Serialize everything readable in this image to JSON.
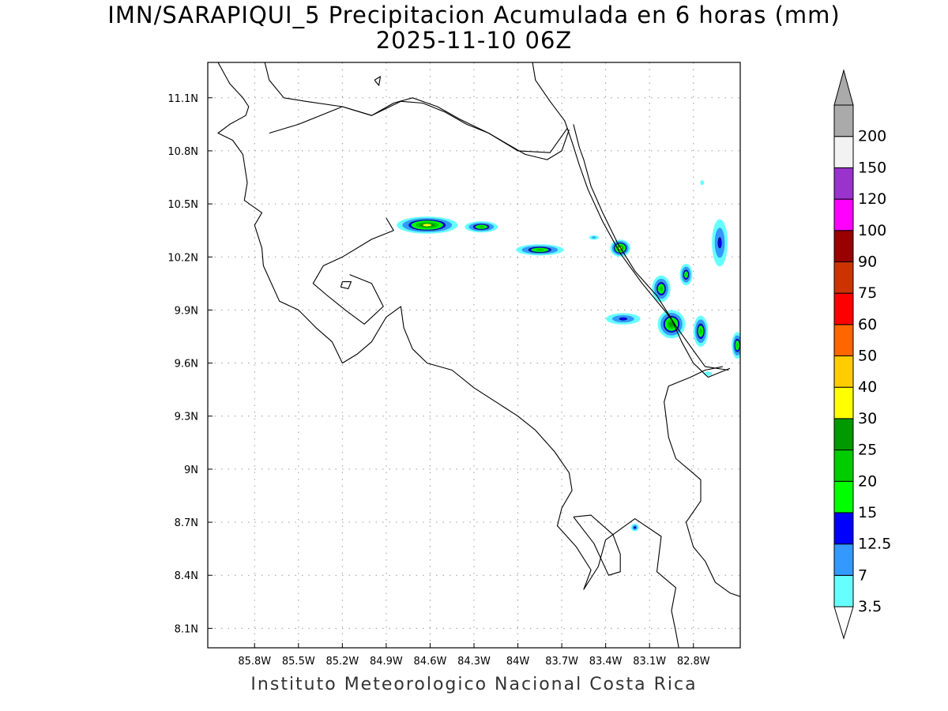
{
  "title": "IMN/SARAPIQUI_5 Precipitacion Acumulada en 6 horas (mm)",
  "subtitle": "2025-11-10 06Z",
  "credit": "Instituto Meteorologico Nacional Costa Rica",
  "map": {
    "lon_range": [
      -86.12,
      -82.48
    ],
    "lat_range": [
      7.99,
      11.3
    ],
    "lon_ticks": [
      {
        "value": -85.8,
        "label": "85.8W"
      },
      {
        "value": -85.5,
        "label": "85.5W"
      },
      {
        "value": -85.2,
        "label": "85.2W"
      },
      {
        "value": -84.9,
        "label": "84.9W"
      },
      {
        "value": -84.6,
        "label": "84.6W"
      },
      {
        "value": -84.3,
        "label": "84.3W"
      },
      {
        "value": -84.0,
        "label": "84W"
      },
      {
        "value": -83.7,
        "label": "83.7W"
      },
      {
        "value": -83.4,
        "label": "83.4W"
      },
      {
        "value": -83.1,
        "label": "83.1W"
      },
      {
        "value": -82.8,
        "label": "82.8W"
      }
    ],
    "lat_ticks": [
      {
        "value": 11.1,
        "label": "11.1N"
      },
      {
        "value": 10.8,
        "label": "10.8N"
      },
      {
        "value": 10.5,
        "label": "10.5N"
      },
      {
        "value": 10.2,
        "label": "10.2N"
      },
      {
        "value": 9.9,
        "label": "9.9N"
      },
      {
        "value": 9.6,
        "label": "9.6N"
      },
      {
        "value": 9.3,
        "label": "9.3N"
      },
      {
        "value": 9.0,
        "label": "9N"
      },
      {
        "value": 8.7,
        "label": "8.7N"
      },
      {
        "value": 8.4,
        "label": "8.4N"
      },
      {
        "value": 8.1,
        "label": "8.1N"
      }
    ],
    "grid": true,
    "coastlines": [
      [
        [
          -86.05,
          11.3
        ],
        [
          -85.97,
          11.18
        ],
        [
          -85.88,
          11.1
        ],
        [
          -85.84,
          11.05
        ],
        [
          -85.86,
          11.0
        ],
        [
          -85.97,
          10.95
        ],
        [
          -86.05,
          10.9
        ],
        [
          -85.95,
          10.86
        ],
        [
          -85.88,
          10.78
        ],
        [
          -85.85,
          10.62
        ],
        [
          -85.87,
          10.52
        ],
        [
          -85.75,
          10.45
        ],
        [
          -85.8,
          10.38
        ],
        [
          -85.75,
          10.25
        ],
        [
          -85.74,
          10.15
        ],
        [
          -85.63,
          9.95
        ],
        [
          -85.5,
          9.9
        ],
        [
          -85.38,
          9.8
        ],
        [
          -85.27,
          9.72
        ],
        [
          -85.2,
          9.6
        ],
        [
          -85.1,
          9.65
        ],
        [
          -85.0,
          9.72
        ],
        [
          -84.9,
          9.86
        ],
        [
          -84.8,
          9.92
        ],
        [
          -84.78,
          9.8
        ],
        [
          -84.72,
          9.68
        ],
        [
          -84.62,
          9.6
        ],
        [
          -84.45,
          9.56
        ],
        [
          -84.3,
          9.46
        ],
        [
          -84.15,
          9.38
        ],
        [
          -84.0,
          9.3
        ],
        [
          -83.88,
          9.22
        ],
        [
          -83.75,
          9.1
        ],
        [
          -83.65,
          8.98
        ],
        [
          -83.63,
          8.88
        ],
        [
          -83.7,
          8.78
        ],
        [
          -83.73,
          8.68
        ],
        [
          -83.6,
          8.56
        ],
        [
          -83.5,
          8.43
        ],
        [
          -83.55,
          8.32
        ],
        [
          -83.45,
          8.45
        ],
        [
          -83.4,
          8.6
        ],
        [
          -83.2,
          8.72
        ],
        [
          -83.02,
          8.62
        ],
        [
          -83.05,
          8.42
        ],
        [
          -82.92,
          8.33
        ],
        [
          -82.95,
          8.2
        ],
        [
          -82.92,
          8.08
        ],
        [
          -82.9,
          7.99
        ]
      ],
      [
        [
          -83.62,
          8.73
        ],
        [
          -83.5,
          8.74
        ],
        [
          -83.35,
          8.63
        ],
        [
          -83.3,
          8.52
        ],
        [
          -83.3,
          8.42
        ],
        [
          -83.38,
          8.4
        ],
        [
          -83.48,
          8.58
        ],
        [
          -83.62,
          8.73
        ]
      ],
      [
        [
          -82.48,
          8.28
        ],
        [
          -82.55,
          8.3
        ],
        [
          -82.65,
          8.36
        ],
        [
          -82.72,
          8.48
        ],
        [
          -82.8,
          8.56
        ],
        [
          -82.85,
          8.7
        ],
        [
          -82.75,
          8.82
        ],
        [
          -82.75,
          8.94
        ],
        [
          -82.82,
          8.99
        ],
        [
          -82.92,
          9.06
        ],
        [
          -82.97,
          9.18
        ],
        [
          -83.0,
          9.38
        ],
        [
          -82.97,
          9.47
        ],
        [
          -82.82,
          9.52
        ],
        [
          -82.72,
          9.56
        ],
        [
          -82.6,
          9.58
        ]
      ],
      [
        [
          -84.9,
          10.42
        ],
        [
          -84.85,
          10.35
        ],
        [
          -85.0,
          10.3
        ],
        [
          -85.2,
          10.2
        ],
        [
          -85.33,
          10.15
        ],
        [
          -85.4,
          10.05
        ],
        [
          -85.3,
          9.98
        ],
        [
          -85.18,
          9.9
        ],
        [
          -85.05,
          9.82
        ],
        [
          -84.92,
          9.92
        ],
        [
          -85.0,
          10.05
        ],
        [
          -85.15,
          10.1
        ]
      ],
      [
        [
          -85.2,
          10.06
        ],
        [
          -85.14,
          10.06
        ],
        [
          -85.16,
          10.02
        ],
        [
          -85.21,
          10.03
        ],
        [
          -85.2,
          10.06
        ]
      ],
      [
        [
          -85.73,
          11.3
        ],
        [
          -85.7,
          11.2
        ],
        [
          -85.6,
          11.1
        ],
        [
          -85.45,
          11.08
        ],
        [
          -85.2,
          11.05
        ],
        [
          -85.0,
          11.0
        ],
        [
          -84.85,
          11.07
        ],
        [
          -84.72,
          11.1
        ],
        [
          -84.55,
          11.05
        ],
        [
          -84.4,
          10.98
        ],
        [
          -84.2,
          10.9
        ],
        [
          -83.95,
          10.78
        ],
        [
          -83.8,
          10.75
        ],
        [
          -83.7,
          10.8
        ],
        [
          -83.65,
          10.92
        ]
      ],
      [
        [
          -83.9,
          11.3
        ],
        [
          -83.88,
          11.2
        ],
        [
          -83.78,
          11.08
        ],
        [
          -83.68,
          10.97
        ],
        [
          -83.63,
          10.85
        ],
        [
          -83.58,
          10.72
        ],
        [
          -83.52,
          10.58
        ],
        [
          -83.42,
          10.4
        ],
        [
          -83.3,
          10.22
        ],
        [
          -83.15,
          10.05
        ],
        [
          -82.98,
          9.88
        ],
        [
          -82.86,
          9.74
        ],
        [
          -82.72,
          9.58
        ],
        [
          -82.56,
          9.56
        ]
      ],
      [
        [
          -84.98,
          11.2
        ],
        [
          -84.95,
          11.17
        ],
        [
          -84.94,
          11.22
        ],
        [
          -84.98,
          11.2
        ]
      ]
    ],
    "borders": [
      [
        [
          -85.7,
          10.9
        ],
        [
          -85.5,
          10.95
        ],
        [
          -85.2,
          11.05
        ],
        [
          -85.0,
          11.0
        ],
        [
          -84.8,
          11.08
        ],
        [
          -84.65,
          11.07
        ],
        [
          -84.5,
          11.02
        ],
        [
          -84.35,
          10.95
        ],
        [
          -84.2,
          10.9
        ],
        [
          -84.0,
          10.8
        ],
        [
          -83.78,
          10.79
        ],
        [
          -83.66,
          10.93
        ]
      ],
      [
        [
          -83.62,
          10.95
        ],
        [
          -83.58,
          10.82
        ],
        [
          -83.55,
          10.75
        ],
        [
          -83.5,
          10.6
        ],
        [
          -83.42,
          10.45
        ],
        [
          -83.32,
          10.28
        ],
        [
          -83.2,
          10.12
        ],
        [
          -83.05,
          9.98
        ],
        [
          -82.95,
          9.85
        ],
        [
          -82.88,
          9.72
        ],
        [
          -82.8,
          9.6
        ],
        [
          -82.7,
          9.52
        ],
        [
          -82.55,
          9.57
        ]
      ]
    ]
  },
  "legend": {
    "levels": [
      "3.5",
      "7",
      "12.5",
      "15",
      "20",
      "25",
      "30",
      "40",
      "50",
      "60",
      "75",
      "90",
      "100",
      "120",
      "150",
      "200"
    ],
    "colors": [
      "#66FFFF",
      "#3399FF",
      "#0000FF",
      "#00FF00",
      "#00CC00",
      "#009900",
      "#FFFF00",
      "#FFCC00",
      "#FF6600",
      "#FF0000",
      "#CC3300",
      "#990000",
      "#FF00FF",
      "#9933CC",
      "#F2F2F2",
      "#AAAAAA"
    ]
  },
  "precip_cells": [
    {
      "lon": -84.62,
      "lat": 10.38,
      "rlon": 0.3,
      "rlat": 0.07,
      "max_mm": 32
    },
    {
      "lon": -84.25,
      "lat": 10.37,
      "rlon": 0.18,
      "rlat": 0.05,
      "max_mm": 22
    },
    {
      "lon": -83.85,
      "lat": 10.24,
      "rlon": 0.26,
      "rlat": 0.05,
      "max_mm": 22
    },
    {
      "lon": -83.3,
      "lat": 10.25,
      "rlon": 0.1,
      "rlat": 0.07,
      "max_mm": 32
    },
    {
      "lon": -83.02,
      "lat": 10.02,
      "rlon": 0.1,
      "rlat": 0.12,
      "max_mm": 22
    },
    {
      "lon": -82.95,
      "lat": 9.82,
      "rlon": 0.14,
      "rlat": 0.12,
      "max_mm": 28
    },
    {
      "lon": -82.75,
      "lat": 9.78,
      "rlon": 0.08,
      "rlat": 0.14,
      "max_mm": 22
    },
    {
      "lon": -82.5,
      "lat": 9.7,
      "rlon": 0.06,
      "rlat": 0.12,
      "max_mm": 22
    },
    {
      "lon": -83.28,
      "lat": 9.85,
      "rlon": 0.22,
      "rlat": 0.06,
      "max_mm": 14
    },
    {
      "lon": -82.85,
      "lat": 10.1,
      "rlon": 0.07,
      "rlat": 0.1,
      "max_mm": 20
    },
    {
      "lon": -82.62,
      "lat": 10.28,
      "rlon": 0.1,
      "rlat": 0.25,
      "max_mm": 14
    },
    {
      "lon": -83.2,
      "lat": 8.67,
      "rlon": 0.05,
      "rlat": 0.04,
      "max_mm": 14
    },
    {
      "lon": -82.74,
      "lat": 10.62,
      "rlon": 0.06,
      "rlat": 0.06,
      "max_mm": 5
    },
    {
      "lon": -83.48,
      "lat": 10.31,
      "rlon": 0.08,
      "rlat": 0.03,
      "max_mm": 9
    },
    {
      "lon": -82.7,
      "lat": 9.54,
      "rlon": 0.1,
      "rlat": 0.04,
      "max_mm": 6
    }
  ]
}
